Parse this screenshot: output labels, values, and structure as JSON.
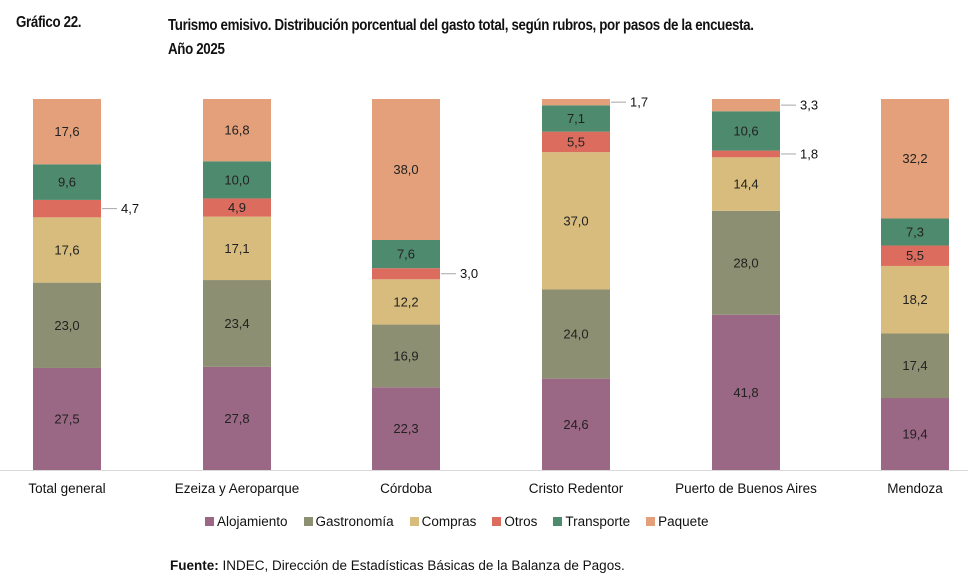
{
  "header": {
    "graphic_number": "Gráfico 22.",
    "title_line1": "Turismo emisivo. Distribución porcentual del gasto total, según rubros, por pasos de la encuesta.",
    "title_line2": "Año 2025"
  },
  "source": {
    "label": "Fuente:",
    "text": " INDEC, Dirección de Estadísticas Básicas de la Balanza de Pagos."
  },
  "chart_data": {
    "type": "bar",
    "stacked": true,
    "orientation": "vertical",
    "title": "Turismo emisivo. Distribución porcentual del gasto total, según rubros, por pasos de la encuesta. Año 2025",
    "xlabel": "",
    "ylabel": "",
    "ylim": [
      0,
      100
    ],
    "grid": false,
    "legend_position": "bottom",
    "categories": [
      "Total general",
      "Ezeiza y Aeroparque",
      "Córdoba",
      "Cristo Redentor",
      "Puerto de Buenos Aires",
      "Mendoza"
    ],
    "series": [
      {
        "name": "Alojamiento",
        "color": "#9a6784",
        "values": [
          27.5,
          27.8,
          22.3,
          24.6,
          41.8,
          19.4
        ]
      },
      {
        "name": "Gastronomía",
        "color": "#8d8f72",
        "values": [
          23.0,
          23.4,
          16.9,
          24.0,
          28.0,
          17.4
        ]
      },
      {
        "name": "Compras",
        "color": "#d8bc7d",
        "values": [
          17.6,
          17.1,
          12.2,
          37.0,
          14.4,
          18.2
        ]
      },
      {
        "name": "Otros",
        "color": "#dc6d5e",
        "values": [
          4.7,
          4.9,
          3.0,
          5.5,
          1.8,
          5.5
        ]
      },
      {
        "name": "Transporte",
        "color": "#4e8a6e",
        "values": [
          9.6,
          10.0,
          7.6,
          7.1,
          10.6,
          7.3
        ]
      },
      {
        "name": "Paquete",
        "color": "#e3a07a",
        "values": [
          17.6,
          16.8,
          38.0,
          1.7,
          3.3,
          32.2
        ]
      }
    ],
    "data_label_decimal_separator": ","
  }
}
